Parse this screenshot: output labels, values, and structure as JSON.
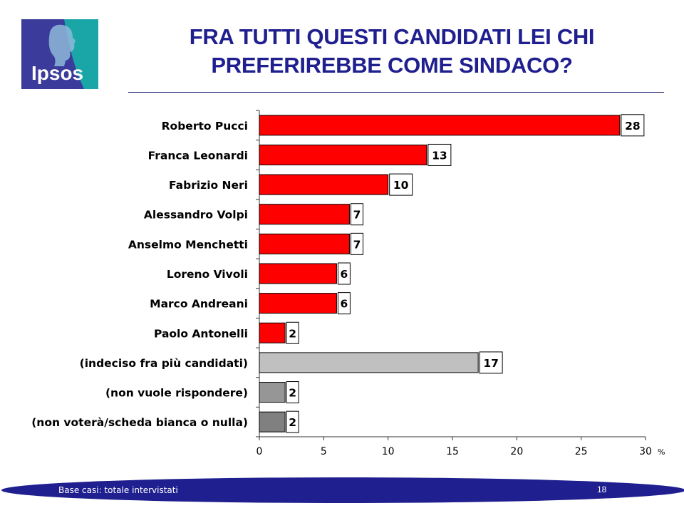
{
  "header": {
    "logo_text": "Ipsos",
    "title_line1": "FRA TUTTI QUESTI CANDIDATI LEI CHI",
    "title_line2": "PREFERIREBBE COME SINDACO?"
  },
  "colors": {
    "title": "#1f1f8f",
    "bar_candidate": "#ff0000",
    "bar_undecided": "#c0c0c0",
    "bar_no_answer": "#969696",
    "bar_no_vote": "#808080",
    "footer_band": "#1f1f8f",
    "logo_blue": "#3b3b9c",
    "logo_teal": "#1aa6a6"
  },
  "chart_data": {
    "type": "bar",
    "orientation": "horizontal",
    "categories": [
      "Roberto Pucci",
      "Franca Leonardi",
      "Fabrizio Neri",
      "Alessandro Volpi",
      "Anselmo Menchetti",
      "Loreno Vivoli",
      "Marco Andreani",
      "Paolo Antonelli",
      "(indeciso fra più candidati)",
      "(non vuole rispondere)",
      "(non voterà/scheda bianca o nulla)"
    ],
    "values": [
      28,
      13,
      10,
      7,
      7,
      6,
      6,
      2,
      17,
      2,
      2
    ],
    "value_labels": [
      "28",
      "13",
      "10",
      "7",
      "7",
      "6",
      "6",
      "2",
      "17",
      "2",
      "2"
    ],
    "bar_color_keys": [
      "candidate",
      "candidate",
      "candidate",
      "candidate",
      "candidate",
      "candidate",
      "candidate",
      "candidate",
      "undecided",
      "no_answer",
      "no_vote"
    ],
    "xlim": [
      0,
      30
    ],
    "xticks": [
      0,
      5,
      10,
      15,
      20,
      25,
      30
    ],
    "x_unit": "%",
    "grid": false
  },
  "footer": {
    "note": "Base casi: totale intervistati",
    "page": "18"
  }
}
